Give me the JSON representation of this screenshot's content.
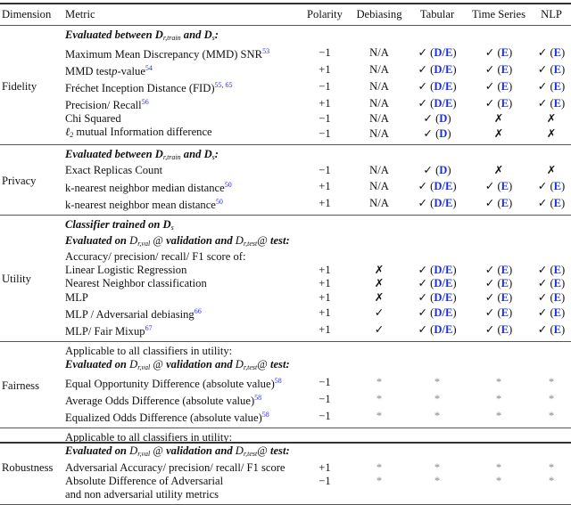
{
  "headers": [
    "Dimension",
    "Metric",
    "Polarity",
    "Debiasing",
    "Tabular",
    "Time Series",
    "NLP"
  ],
  "sections": [
    {
      "dimension": "Fidelity",
      "rows": [
        {
          "metric": [
            {
              "t": "Evaluated between ",
              "c": "bi"
            },
            {
              "t": "D",
              "c": "bi"
            },
            {
              "sub": "r,train"
            },
            {
              "t": " and ",
              "c": "bi"
            },
            {
              "t": "D",
              "c": "bi"
            },
            {
              "sub": "s"
            },
            {
              "t": ":",
              "c": "bi"
            }
          ]
        },
        {
          "metric": [
            {
              "t": "Maximum Mean Discrepancy (MMD) SNR"
            },
            {
              "sup": "53"
            }
          ],
          "polarity": "−1",
          "debiasing": "N/A",
          "cells": [
            {
              "mark": "✓",
              "tag": "D/E"
            },
            {
              "mark": "✓",
              "tag": "E"
            },
            {
              "mark": "✓",
              "tag": "E"
            }
          ]
        },
        {
          "metric": [
            {
              "t": "MMD test"
            },
            {
              "t": "p",
              "c": "it"
            },
            {
              "t": "-value"
            },
            {
              "sup": "54"
            }
          ],
          "polarity": "+1",
          "debiasing": "N/A",
          "cells": [
            {
              "mark": "✓",
              "tag": "D/E"
            },
            {
              "mark": "✓",
              "tag": "E"
            },
            {
              "mark": "✓",
              "tag": "E"
            }
          ]
        },
        {
          "metric": [
            {
              "t": "Fréchet Inception Distance (FID)"
            },
            {
              "sup": "55, 65"
            }
          ],
          "polarity": "−1",
          "debiasing": "N/A",
          "cells": [
            {
              "mark": "✓",
              "tag": "D/E"
            },
            {
              "mark": "✓",
              "tag": "E"
            },
            {
              "mark": "✓",
              "tag": "E"
            }
          ]
        },
        {
          "metric": [
            {
              "t": "Precision/ Recall"
            },
            {
              "sup": "56"
            }
          ],
          "polarity": "+1",
          "debiasing": "N/A",
          "cells": [
            {
              "mark": "✓",
              "tag": "D/E"
            },
            {
              "mark": "✓",
              "tag": "E"
            },
            {
              "mark": "✓",
              "tag": "E"
            }
          ]
        },
        {
          "metric": [
            {
              "t": "Chi Squared"
            }
          ],
          "polarity": "−1",
          "debiasing": "N/A",
          "cells": [
            {
              "mark": "✓",
              "tag": "D"
            },
            {
              "mark": "✗"
            },
            {
              "mark": "✗"
            }
          ]
        },
        {
          "metric": [
            {
              "t": "ℓ",
              "c": "it"
            },
            {
              "sub": "2"
            },
            {
              "t": " mutual Information difference"
            }
          ],
          "polarity": "−1",
          "debiasing": "N/A",
          "cells": [
            {
              "mark": "✓",
              "tag": "D"
            },
            {
              "mark": "✗"
            },
            {
              "mark": "✗"
            }
          ]
        }
      ]
    },
    {
      "dimension": "Privacy",
      "rows": [
        {
          "metric": [
            {
              "t": "Evaluated between ",
              "c": "bi"
            },
            {
              "t": "D",
              "c": "bi"
            },
            {
              "sub": "r,train"
            },
            {
              "t": " and ",
              "c": "bi"
            },
            {
              "t": "D",
              "c": "bi"
            },
            {
              "sub": "s"
            },
            {
              "t": ":",
              "c": "bi"
            }
          ]
        },
        {
          "metric": [
            {
              "t": "Exact Replicas Count"
            }
          ],
          "polarity": "−1",
          "debiasing": "N/A",
          "cells": [
            {
              "mark": "✓",
              "tag": "D"
            },
            {
              "mark": "✗"
            },
            {
              "mark": "✗"
            }
          ]
        },
        {
          "metric": [
            {
              "t": "k-nearest neighbor median distance"
            },
            {
              "sup": "50"
            }
          ],
          "polarity": "+1",
          "debiasing": "N/A",
          "cells": [
            {
              "mark": "✓",
              "tag": "D/E"
            },
            {
              "mark": "✓",
              "tag": "E"
            },
            {
              "mark": "✓",
              "tag": "E"
            }
          ]
        },
        {
          "metric": [
            {
              "t": "k-nearest neighbor mean distance"
            },
            {
              "sup": "50"
            }
          ],
          "polarity": "+1",
          "debiasing": "N/A",
          "cells": [
            {
              "mark": "✓",
              "tag": "D/E"
            },
            {
              "mark": "✓",
              "tag": "E"
            },
            {
              "mark": "✓",
              "tag": "E"
            }
          ]
        }
      ]
    },
    {
      "dimension": "Utility",
      "rows": [
        {
          "metric": [
            {
              "t": "Classifier trained on ",
              "c": "bi"
            },
            {
              "t": "D",
              "c": "bi"
            },
            {
              "sub": "s"
            }
          ]
        },
        {
          "metric": [
            {
              "t": "Evaluated on ",
              "c": "bi"
            },
            {
              "t": "D",
              "c": "it"
            },
            {
              "sub": "r,val"
            },
            {
              "t": " @ ",
              "c": ""
            },
            {
              "t": "validation and ",
              "c": "bi"
            },
            {
              "t": "D",
              "c": "it"
            },
            {
              "sub": "r,test"
            },
            {
              "t": "@ "
            },
            {
              "t": "test",
              "c": "bi"
            },
            {
              "t": ":",
              "c": "bi"
            }
          ]
        },
        {
          "metric": [
            {
              "t": "Accuracy/ precision/ recall/ F1 score of:"
            }
          ]
        },
        {
          "metric": [
            {
              "t": "Linear Logistic Regression"
            }
          ],
          "polarity": "+1",
          "debiasing": "✗",
          "cells": [
            {
              "mark": "✓",
              "tag": "D/E"
            },
            {
              "mark": "✓",
              "tag": "E"
            },
            {
              "mark": "✓",
              "tag": "E"
            }
          ]
        },
        {
          "metric": [
            {
              "t": "Nearest Neighbor classification"
            }
          ],
          "polarity": "+1",
          "debiasing": "✗",
          "cells": [
            {
              "mark": "✓",
              "tag": "D/E"
            },
            {
              "mark": "✓",
              "tag": "E"
            },
            {
              "mark": "✓",
              "tag": "E"
            }
          ]
        },
        {
          "metric": [
            {
              "t": "MLP"
            }
          ],
          "polarity": "+1",
          "debiasing": "✗",
          "cells": [
            {
              "mark": "✓",
              "tag": "D/E"
            },
            {
              "mark": "✓",
              "tag": "E"
            },
            {
              "mark": "✓",
              "tag": "E"
            }
          ]
        },
        {
          "metric": [
            {
              "t": "MLP / Adversarial debiasing"
            },
            {
              "sup": "66"
            }
          ],
          "polarity": "+1",
          "debiasing": "✓",
          "cells": [
            {
              "mark": "✓",
              "tag": "D/E"
            },
            {
              "mark": "✓",
              "tag": "E"
            },
            {
              "mark": "✓",
              "tag": "E"
            }
          ]
        },
        {
          "metric": [
            {
              "t": "MLP/ Fair Mixup"
            },
            {
              "sup": "67"
            }
          ],
          "polarity": "+1",
          "debiasing": "✓",
          "cells": [
            {
              "mark": "✓",
              "tag": "D/E"
            },
            {
              "mark": "✓",
              "tag": "E"
            },
            {
              "mark": "✓",
              "tag": "E"
            }
          ]
        }
      ]
    },
    {
      "dimension": "Fairness",
      "rows": [
        {
          "metric": [
            {
              "t": "Applicable to all classifiers in utility:"
            }
          ]
        },
        {
          "metric": [
            {
              "t": "Evaluated on ",
              "c": "bi"
            },
            {
              "t": "D",
              "c": "it"
            },
            {
              "sub": "r,val"
            },
            {
              "t": " @ "
            },
            {
              "t": "validation and ",
              "c": "bi"
            },
            {
              "t": "D",
              "c": "it"
            },
            {
              "sub": "r,test"
            },
            {
              "t": "@ "
            },
            {
              "t": "test",
              "c": "bi"
            },
            {
              "t": ":",
              "c": "bi"
            }
          ]
        },
        {
          "metric": [
            {
              "t": "Equal Opportunity Difference (absolute value)"
            },
            {
              "sup": "58"
            }
          ],
          "polarity": "−1",
          "debiasing": "*",
          "cells": [
            {
              "mark": "*"
            },
            {
              "mark": "*"
            },
            {
              "mark": "*"
            }
          ]
        },
        {
          "metric": [
            {
              "t": "Average Odds Difference (absolute value)"
            },
            {
              "sup": "58"
            }
          ],
          "polarity": "−1",
          "debiasing": "*",
          "cells": [
            {
              "mark": "*"
            },
            {
              "mark": "*"
            },
            {
              "mark": "*"
            }
          ]
        },
        {
          "metric": [
            {
              "t": "Equalized Odds Difference (absolute value)"
            },
            {
              "sup": "58"
            }
          ],
          "polarity": "−1",
          "debiasing": "*",
          "cells": [
            {
              "mark": "*"
            },
            {
              "mark": "*"
            },
            {
              "mark": "*"
            }
          ]
        }
      ]
    },
    {
      "dimension": "Robustness",
      "rows": [
        {
          "metric": [
            {
              "t": "Applicable to all classifiers in utility:"
            }
          ]
        },
        {
          "metric": [
            {
              "t": "Evaluated on ",
              "c": "bi"
            },
            {
              "t": "D",
              "c": "it"
            },
            {
              "sub": "r,val"
            },
            {
              "t": " @ "
            },
            {
              "t": "validation and ",
              "c": "bi"
            },
            {
              "t": "D",
              "c": "it"
            },
            {
              "sub": "r,test"
            },
            {
              "t": "@ "
            },
            {
              "t": "test",
              "c": "bi"
            },
            {
              "t": ":",
              "c": "bi"
            }
          ]
        },
        {
          "metric": [
            {
              "t": "Adversarial Accuracy/ precision/ recall/ F1 score"
            }
          ],
          "polarity": "+1",
          "debiasing": "*",
          "cells": [
            {
              "mark": "*"
            },
            {
              "mark": "*"
            },
            {
              "mark": "*"
            }
          ]
        },
        {
          "metric": [
            {
              "t": "Absolute Difference of Adversarial"
            }
          ],
          "polarity": "−1",
          "debiasing": "*",
          "cells": [
            {
              "mark": "*"
            },
            {
              "mark": "*"
            },
            {
              "mark": "*"
            }
          ]
        },
        {
          "metric": [
            {
              "t": "and non adversarial utility metrics"
            }
          ]
        }
      ]
    }
  ],
  "colors": {
    "tag": "#1c2fe0",
    "citation": "#2a2aee",
    "asterisk": "#888888"
  }
}
